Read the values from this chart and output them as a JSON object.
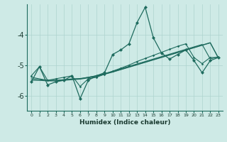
{
  "xlabel": "Humidex (Indice chaleur)",
  "bg_color": "#ceeae6",
  "grid_color": "#aed4ce",
  "line_color": "#1e6b5e",
  "x_data": [
    0,
    1,
    2,
    3,
    4,
    5,
    6,
    7,
    8,
    9,
    10,
    11,
    12,
    13,
    14,
    15,
    16,
    17,
    18,
    19,
    20,
    21,
    22,
    23
  ],
  "main_y": [
    -5.55,
    -5.05,
    -5.65,
    -5.55,
    -5.5,
    -5.35,
    -6.1,
    -5.5,
    -5.35,
    -5.25,
    -4.65,
    -4.5,
    -4.3,
    -3.6,
    -3.1,
    -4.1,
    -4.6,
    -4.8,
    -4.65,
    -4.5,
    -4.85,
    -5.25,
    -4.85,
    -4.75
  ],
  "trend1_y": [
    -5.35,
    -5.05,
    -5.5,
    -5.45,
    -5.4,
    -5.35,
    -5.7,
    -5.45,
    -5.4,
    -5.3,
    -5.2,
    -5.1,
    -5.0,
    -4.88,
    -4.78,
    -4.68,
    -4.58,
    -4.48,
    -4.38,
    -4.3,
    -4.75,
    -4.95,
    -4.75,
    -4.75
  ],
  "trend2_y": [
    -5.4,
    -5.45,
    -5.5,
    -5.5,
    -5.48,
    -5.45,
    -5.45,
    -5.4,
    -5.35,
    -5.28,
    -5.2,
    -5.12,
    -5.04,
    -4.96,
    -4.88,
    -4.8,
    -4.72,
    -4.64,
    -4.56,
    -4.48,
    -4.4,
    -4.32,
    -4.8,
    -4.72
  ],
  "trend3_y": [
    -5.45,
    -5.48,
    -5.5,
    -5.5,
    -5.48,
    -5.46,
    -5.44,
    -5.4,
    -5.35,
    -5.29,
    -5.22,
    -5.14,
    -5.06,
    -4.98,
    -4.9,
    -4.82,
    -4.74,
    -4.66,
    -4.58,
    -4.5,
    -4.42,
    -4.34,
    -4.26,
    -4.76
  ],
  "trend4_y": [
    -5.5,
    -5.5,
    -5.52,
    -5.52,
    -5.5,
    -5.48,
    -5.46,
    -5.42,
    -5.37,
    -5.3,
    -5.23,
    -5.15,
    -5.07,
    -4.99,
    -4.91,
    -4.83,
    -4.75,
    -4.67,
    -4.59,
    -4.51,
    -4.43,
    -4.35,
    -4.27,
    -4.77
  ],
  "ylim": [
    -6.5,
    -3.0
  ],
  "yticks": [
    -6,
    -5,
    -4
  ],
  "xticks": [
    0,
    1,
    2,
    3,
    4,
    5,
    6,
    7,
    8,
    9,
    10,
    11,
    12,
    13,
    14,
    15,
    16,
    17,
    18,
    19,
    20,
    21,
    22,
    23
  ]
}
